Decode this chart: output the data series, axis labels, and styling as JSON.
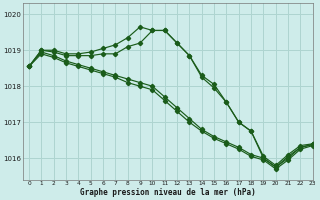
{
  "title": "Graphe pression niveau de la mer (hPa)",
  "bg_color": "#ceecea",
  "grid_color": "#aed4d0",
  "line_color": "#1a5c1a",
  "xlim": [
    -0.5,
    23
  ],
  "ylim": [
    1015.4,
    1020.3
  ],
  "yticks": [
    1016,
    1017,
    1018,
    1019,
    1020
  ],
  "xticks": [
    0,
    1,
    2,
    3,
    4,
    5,
    6,
    7,
    8,
    9,
    10,
    11,
    12,
    13,
    14,
    15,
    16,
    17,
    18,
    19,
    20,
    21,
    22,
    23
  ],
  "series": [
    [
      1018.55,
      1019.0,
      1019.0,
      1018.9,
      1018.9,
      1018.95,
      1019.05,
      1019.15,
      1019.35,
      1019.65,
      1019.55,
      1019.55,
      1019.2,
      1018.85,
      1018.3,
      1018.05,
      1017.55,
      1017.0,
      1016.75,
      1016.05,
      1015.8,
      1016.1,
      1016.35,
      1016.4
    ],
    [
      1018.55,
      1019.0,
      1018.95,
      1018.85,
      1018.85,
      1018.85,
      1018.9,
      1018.9,
      1019.1,
      1019.2,
      1019.55,
      1019.55,
      1019.2,
      1018.85,
      1018.25,
      1017.95,
      1017.55,
      1017.0,
      1016.75,
      1016.0,
      1015.75,
      1016.05,
      1016.3,
      1016.38
    ],
    [
      1018.55,
      1018.95,
      1018.85,
      1018.7,
      1018.6,
      1018.5,
      1018.4,
      1018.3,
      1018.2,
      1018.1,
      1018.0,
      1017.7,
      1017.4,
      1017.1,
      1016.8,
      1016.6,
      1016.45,
      1016.3,
      1016.1,
      1016.0,
      1015.75,
      1016.0,
      1016.3,
      1016.38
    ],
    [
      1018.55,
      1018.9,
      1018.8,
      1018.65,
      1018.55,
      1018.45,
      1018.35,
      1018.25,
      1018.1,
      1018.0,
      1017.9,
      1017.6,
      1017.3,
      1017.0,
      1016.75,
      1016.55,
      1016.4,
      1016.25,
      1016.05,
      1015.95,
      1015.7,
      1015.95,
      1016.25,
      1016.35
    ]
  ]
}
